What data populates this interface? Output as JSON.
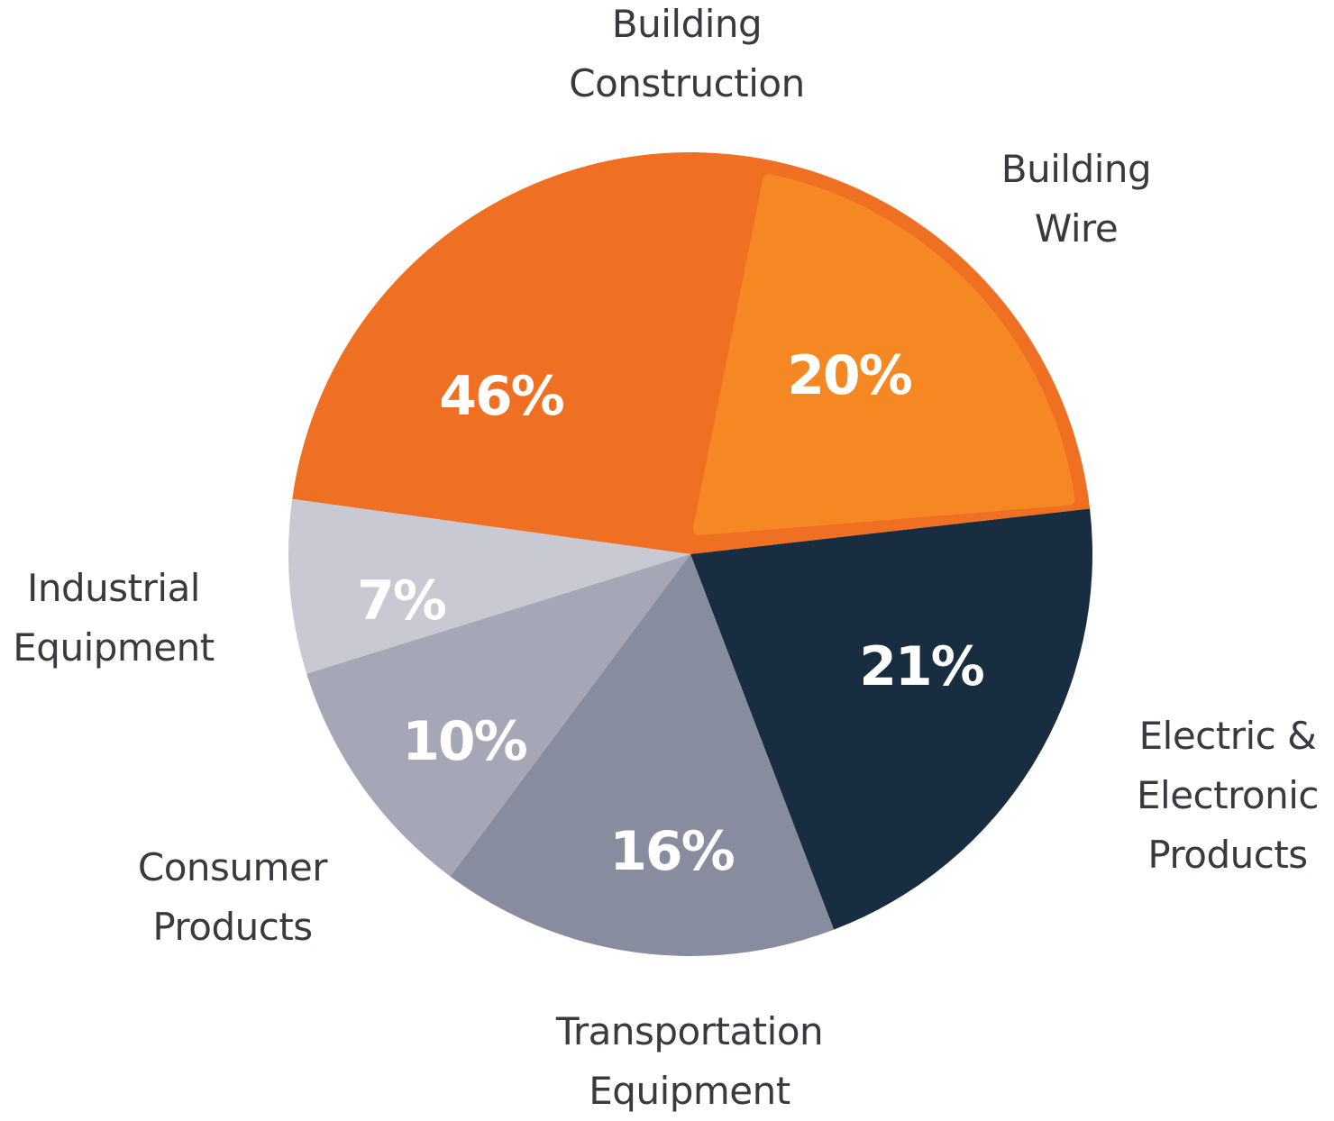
{
  "chart_data": {
    "type": "pie",
    "slices": [
      {
        "name": "Building Construction",
        "value": 46,
        "label": "46%",
        "color": "#f07023",
        "lines": [
          "Building",
          "Construction"
        ]
      },
      {
        "name": "Electric & Electronic Products",
        "value": 21,
        "label": "21%",
        "color": "#182d40",
        "lines": [
          "Electric &",
          "Electronic",
          "Products"
        ]
      },
      {
        "name": "Transportation Equipment",
        "value": 16,
        "label": "16%",
        "color": "#888c9f",
        "lines": [
          "Transportation",
          "Equipment"
        ]
      },
      {
        "name": "Consumer Products",
        "value": 10,
        "label": "10%",
        "color": "#a5a7b6",
        "lines": [
          "Consumer",
          "Products"
        ]
      },
      {
        "name": "Industrial Equipment",
        "value": 7,
        "label": "7%",
        "color": "#c9c9d3",
        "lines": [
          "Industrial",
          "Equipment"
        ]
      }
    ],
    "sub_slice": {
      "name": "Building Wire",
      "parent": "Building Construction",
      "value": 20,
      "label": "20%",
      "color": "#f58822",
      "lines": [
        "Building",
        "Wire"
      ]
    }
  }
}
